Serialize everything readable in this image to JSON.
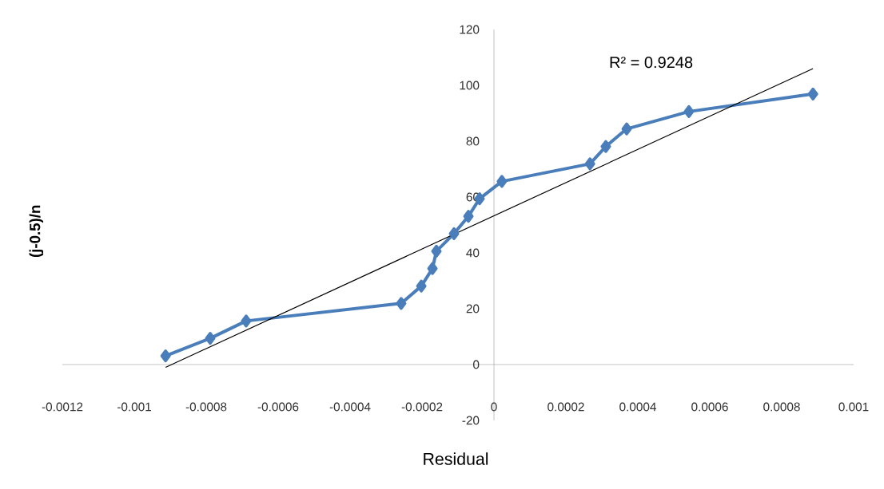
{
  "chart_data": {
    "type": "line",
    "xlabel": "Residual",
    "ylabel": "(j-0.5)/n",
    "annotations": [
      "R² = 0.9248"
    ],
    "xlim": [
      -0.0012,
      0.001
    ],
    "xticks": [
      -0.0012,
      -0.001,
      -0.0008,
      -0.0006,
      -0.0004,
      -0.0002,
      0,
      0.0002,
      0.0004,
      0.0006,
      0.0008,
      0.001
    ],
    "ylim": [
      -20,
      120
    ],
    "yticks": [
      -20,
      0,
      20,
      40,
      60,
      80,
      100,
      120
    ],
    "series": [
      {
        "color": "#4a7ebb",
        "marker": "diamond",
        "x": [
          -0.000913,
          -0.000789,
          -0.000689,
          -0.000258,
          -0.000202,
          -0.000171,
          -0.00016,
          -0.000111,
          -7.1e-05,
          -4e-05,
          2.2e-05,
          0.000267,
          0.000311,
          0.000369,
          0.000542,
          0.000887
        ],
        "values": [
          3.1,
          9.4,
          15.6,
          21.9,
          28.1,
          34.4,
          40.6,
          46.9,
          53.1,
          59.4,
          65.6,
          71.9,
          78.1,
          84.4,
          90.6,
          96.9
        ]
      },
      {
        "color": "#000000",
        "marker": "none",
        "x": [
          -0.000913,
          0.000887
        ],
        "values": [
          -1,
          106
        ]
      }
    ]
  }
}
